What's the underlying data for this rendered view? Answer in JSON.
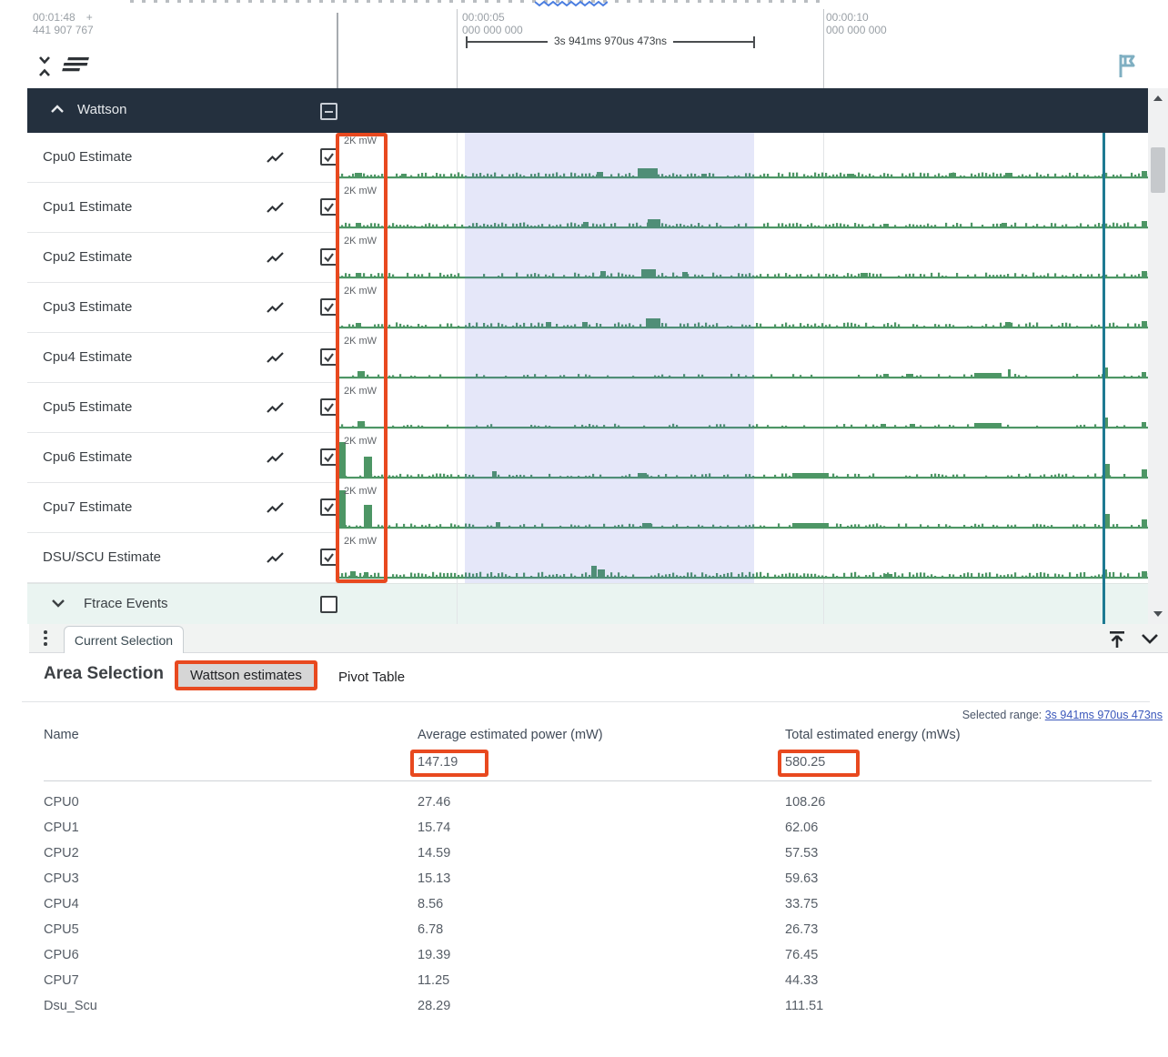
{
  "ruler": {
    "offset_time": "00:01:48",
    "offset_plus": "+",
    "offset_sub": "441 907 767",
    "marks": [
      {
        "time": "00:00:05",
        "sub": "000 000 000"
      },
      {
        "time": "00:00:10",
        "sub": "000 000 000"
      }
    ],
    "measure_label": "3s 941ms 970us 473ns"
  },
  "group": {
    "label": "Wattson"
  },
  "tracks": [
    {
      "label": "Cpu0 Estimate",
      "scale": "2K mW",
      "seed": 11,
      "density": 0.72,
      "amp": 2.4,
      "features": [
        [
          19,
          4,
          8
        ],
        [
          70,
          3,
          6
        ],
        [
          285,
          5,
          7
        ],
        [
          330,
          9,
          22
        ],
        [
          400,
          3,
          6
        ],
        [
          560,
          3,
          8
        ],
        [
          674,
          4,
          6
        ],
        [
          734,
          4,
          8
        ],
        [
          884,
          6,
          6
        ]
      ]
    },
    {
      "label": "Cpu1 Estimate",
      "scale": "2K mW",
      "seed": 22,
      "density": 0.68,
      "amp": 2.3,
      "features": [
        [
          20,
          4,
          6
        ],
        [
          270,
          5,
          6
        ],
        [
          341,
          8,
          14
        ],
        [
          600,
          3,
          6
        ],
        [
          730,
          4,
          6
        ],
        [
          884,
          6,
          6
        ]
      ]
    },
    {
      "label": "Cpu2 Estimate",
      "scale": "2K mW",
      "seed": 33,
      "density": 0.68,
      "amp": 2.3,
      "features": [
        [
          20,
          4,
          6
        ],
        [
          289,
          6,
          6
        ],
        [
          334,
          8,
          16
        ],
        [
          379,
          5,
          6
        ],
        [
          575,
          4,
          8
        ],
        [
          884,
          6,
          6
        ]
      ]
    },
    {
      "label": "Cpu3 Estimate",
      "scale": "2K mW",
      "seed": 44,
      "density": 0.68,
      "amp": 2.4,
      "features": [
        [
          20,
          4,
          6
        ],
        [
          229,
          5,
          6
        ],
        [
          269,
          5,
          6
        ],
        [
          339,
          9,
          16
        ],
        [
          734,
          5,
          6
        ],
        [
          884,
          6,
          6
        ]
      ]
    },
    {
      "label": "Cpu4 Estimate",
      "scale": "2K mW",
      "seed": 55,
      "density": 0.28,
      "amp": 1.5,
      "features": [
        [
          22,
          6,
          8
        ],
        [
          600,
          3,
          6
        ],
        [
          625,
          3,
          8
        ],
        [
          700,
          4,
          30
        ],
        [
          737,
          8,
          3
        ],
        [
          843,
          10,
          4
        ],
        [
          884,
          5,
          5
        ]
      ]
    },
    {
      "label": "Cpu5 Estimate",
      "scale": "2K mW",
      "seed": 66,
      "density": 0.28,
      "amp": 1.5,
      "features": [
        [
          22,
          6,
          8
        ],
        [
          597,
          3,
          6
        ],
        [
          629,
          3,
          6
        ],
        [
          700,
          4,
          30
        ],
        [
          843,
          10,
          4
        ],
        [
          884,
          5,
          5
        ]
      ]
    },
    {
      "label": "Cpu6 Estimate",
      "scale": "2K mW",
      "seed": 77,
      "density": 0.5,
      "amp": 1.8,
      "features": [
        [
          2,
          38,
          7
        ],
        [
          29,
          22,
          9
        ],
        [
          170,
          6,
          5
        ],
        [
          330,
          4,
          10
        ],
        [
          500,
          4,
          40
        ],
        [
          844,
          14,
          5
        ],
        [
          884,
          8,
          6
        ]
      ]
    },
    {
      "label": "Cpu7 Estimate",
      "scale": "2K mW",
      "seed": 88,
      "density": 0.5,
      "amp": 1.8,
      "features": [
        [
          2,
          40,
          7
        ],
        [
          29,
          24,
          9
        ],
        [
          174,
          5,
          5
        ],
        [
          335,
          4,
          10
        ],
        [
          500,
          4,
          40
        ],
        [
          844,
          14,
          5
        ],
        [
          884,
          8,
          6
        ]
      ]
    },
    {
      "label": "DSU/SCU Estimate",
      "scale": "2K mW",
      "seed": 99,
      "density": 0.8,
      "amp": 2.8,
      "features": [
        [
          14,
          6,
          6
        ],
        [
          29,
          5,
          5
        ],
        [
          279,
          12,
          6
        ],
        [
          286,
          8,
          8
        ],
        [
          600,
          3,
          10
        ],
        [
          842,
          8,
          4
        ],
        [
          884,
          6,
          6
        ]
      ]
    }
  ],
  "ftrace": {
    "label": "Ftrace Events"
  },
  "bottom_bar": {
    "tab_label": "Current Selection"
  },
  "panel": {
    "title": "Area Selection",
    "tab_active": "Wattson estimates",
    "tab_inactive": "Pivot Table",
    "selected_range_label": "Selected range:",
    "selected_range_value": "3s 941ms 970us 473ns",
    "columns": {
      "name": "Name",
      "power": "Average estimated power (mW)",
      "energy": "Total estimated energy (mWs)"
    },
    "totals": {
      "power": "147.19",
      "energy": "580.25"
    },
    "rows": [
      {
        "name": "CPU0",
        "power": "27.46",
        "energy": "108.26"
      },
      {
        "name": "CPU1",
        "power": "15.74",
        "energy": "62.06"
      },
      {
        "name": "CPU2",
        "power": "14.59",
        "energy": "57.53"
      },
      {
        "name": "CPU3",
        "power": "15.13",
        "energy": "59.63"
      },
      {
        "name": "CPU4",
        "power": "8.56",
        "energy": "33.75"
      },
      {
        "name": "CPU5",
        "power": "6.78",
        "energy": "26.73"
      },
      {
        "name": "CPU6",
        "power": "19.39",
        "energy": "76.45"
      },
      {
        "name": "CPU7",
        "power": "11.25",
        "energy": "44.33"
      },
      {
        "name": "Dsu_Scu",
        "power": "28.29",
        "energy": "111.51"
      }
    ]
  },
  "colors": {
    "annotation": "#e8491f",
    "waveform": "#4d9665",
    "selection_overlay": "rgba(93,108,216,0.16)",
    "timeline_marker": "#1e7a92",
    "group_header_bg": "#24303e",
    "link": "#3a57bb",
    "flag": "#7fafc2"
  }
}
